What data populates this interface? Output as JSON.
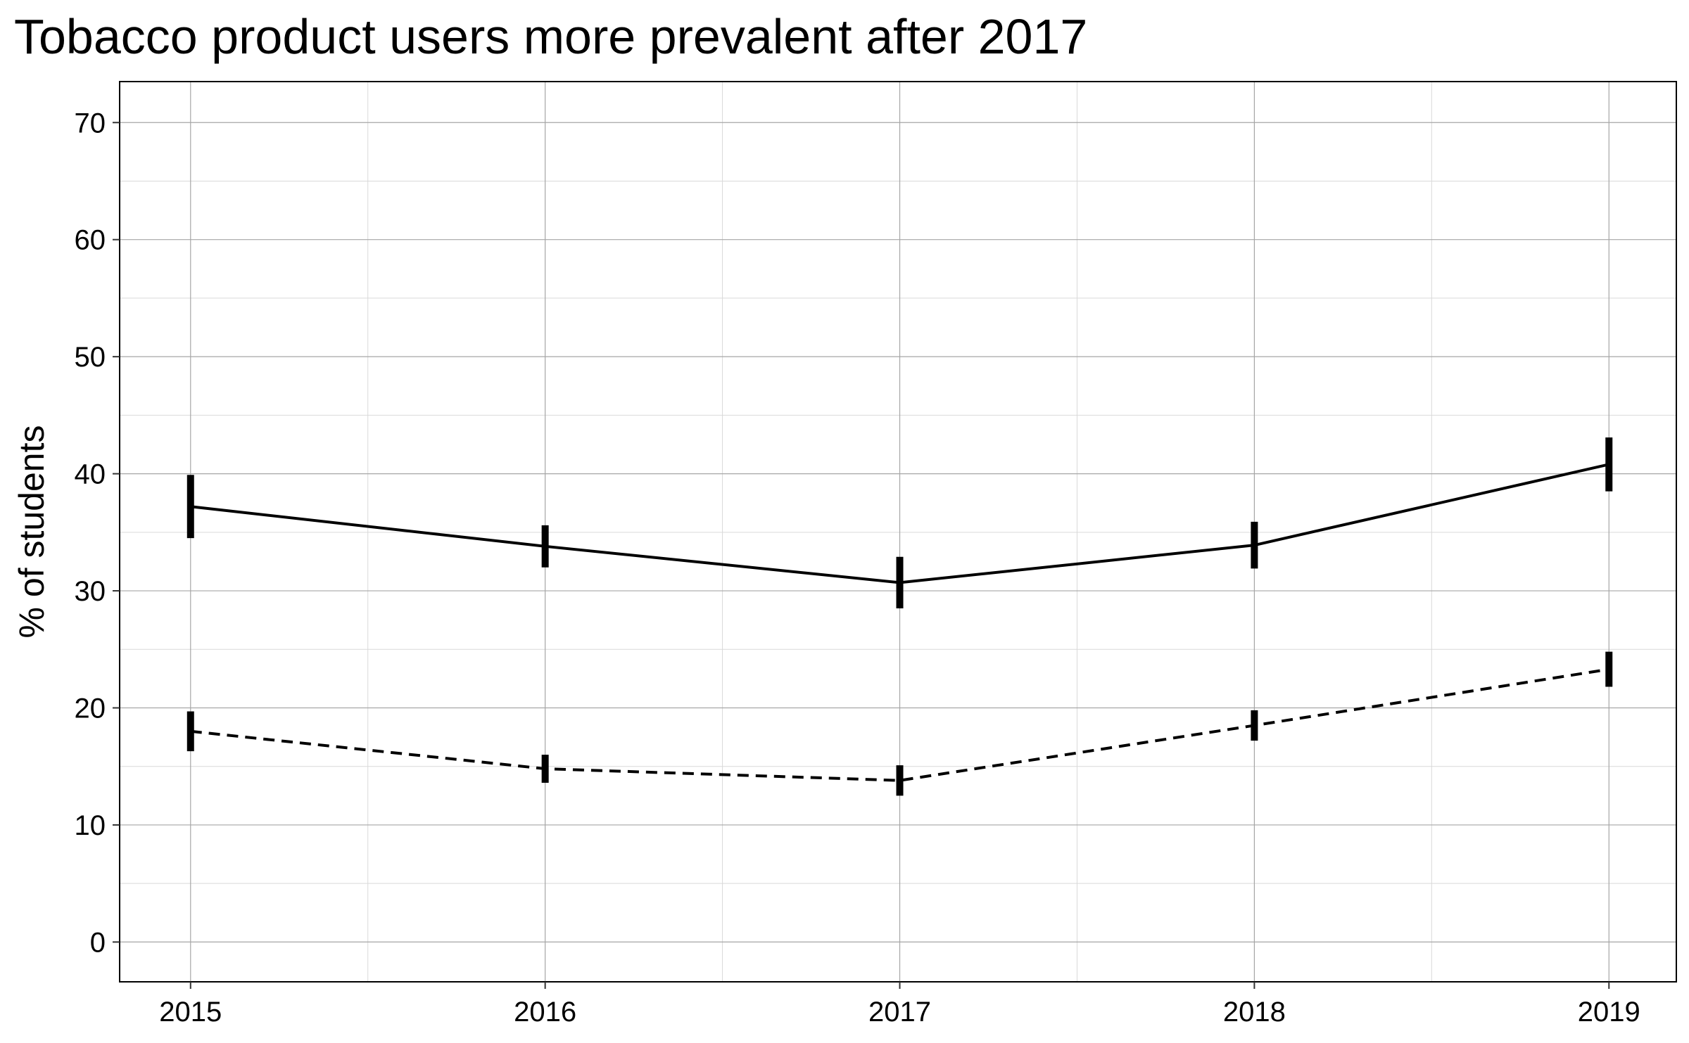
{
  "chart_data": {
    "type": "line",
    "title": "Tobacco product users more prevalent after 2017",
    "xlabel": "",
    "ylabel": "% of students",
    "x": [
      2015,
      2016,
      2017,
      2018,
      2019
    ],
    "x_tick_labels": [
      "2015",
      "2016",
      "2017",
      "2018",
      "2019"
    ],
    "y_ticks": [
      0,
      10,
      20,
      30,
      40,
      50,
      60,
      70
    ],
    "y_tick_labels": [
      "0",
      "10",
      "20",
      "30",
      "40",
      "50",
      "60",
      "70"
    ],
    "xlim": [
      2014.8,
      2019.19
    ],
    "ylim": [
      -3.4,
      73.5
    ],
    "grid": true,
    "legend": "none",
    "series": [
      {
        "line_style": "solid",
        "values": [
          37.2,
          33.8,
          30.7,
          33.9,
          40.8
        ],
        "error_low": [
          34.5,
          32.0,
          28.5,
          31.9,
          38.5
        ],
        "error_high": [
          39.9,
          35.6,
          32.9,
          35.9,
          43.1
        ]
      },
      {
        "line_style": "dashed",
        "values": [
          18.0,
          14.8,
          13.8,
          18.5,
          23.3
        ],
        "error_low": [
          16.3,
          13.6,
          12.5,
          17.2,
          21.8
        ],
        "error_high": [
          19.7,
          16.0,
          15.1,
          19.8,
          24.8
        ]
      }
    ],
    "colors": {
      "line": "#000000",
      "grid_major": "#a6a6a6",
      "grid_minor": "#d9d9d9",
      "panel_border": "#000000"
    }
  }
}
